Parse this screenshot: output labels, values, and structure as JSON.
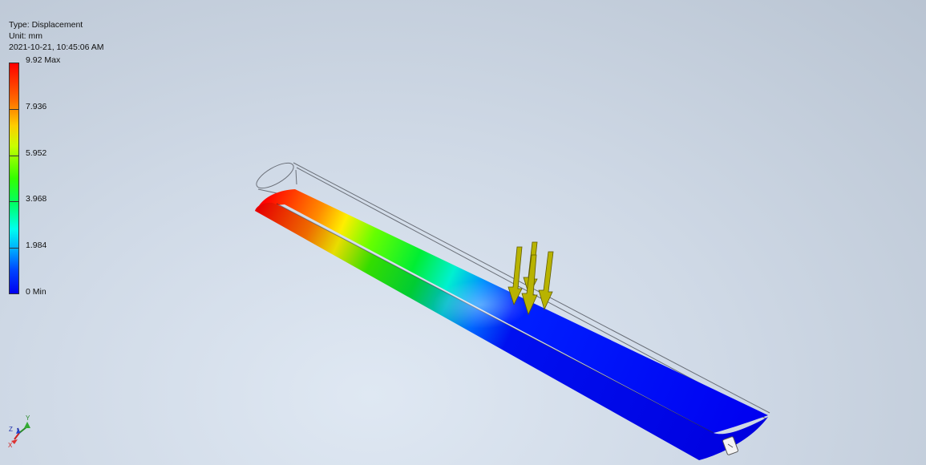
{
  "header": {
    "type_line": "Type: Displacement",
    "unit_line": "Unit: mm",
    "date_line": "2021-10-21, 10:45:06 AM"
  },
  "legend": {
    "labels": [
      "9.92 Max",
      "7.936",
      "5.952",
      "3.968",
      "1.984",
      "0 Min"
    ]
  },
  "triad": {
    "x": "X",
    "y": "Y",
    "z": "Z"
  },
  "colors": {
    "max": "#ff0000",
    "mid": "#33ff00",
    "min": "#0000f0",
    "load_arrow": "#b5b000"
  },
  "icons": [
    "view-triad-icon",
    "load-arrow-icon",
    "fixed-constraint-icon"
  ]
}
